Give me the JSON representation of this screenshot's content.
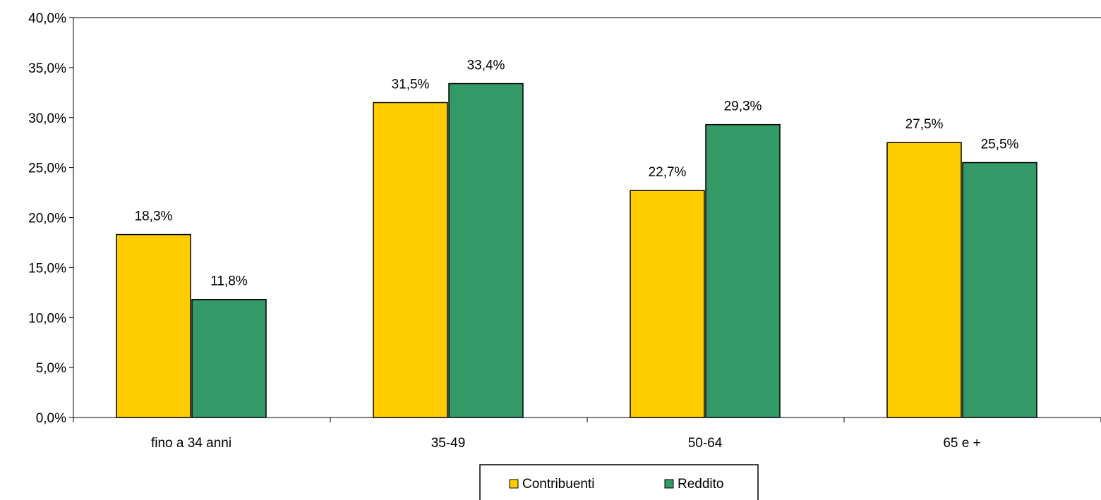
{
  "chart_data": {
    "type": "bar",
    "categories": [
      "fino a 34 anni",
      "35-49",
      "50-64",
      "65 e +"
    ],
    "series": [
      {
        "name": "Contribuenti",
        "color": "#ffcc00",
        "values": [
          18.3,
          31.5,
          22.7,
          27.5
        ],
        "labels": [
          "18,3%",
          "31,5%",
          "22,7%",
          "27,5%"
        ]
      },
      {
        "name": "Reddito",
        "color": "#339966",
        "values": [
          11.8,
          33.4,
          29.3,
          25.5
        ],
        "labels": [
          "11,8%",
          "33,4%",
          "29,3%",
          "25,5%"
        ]
      }
    ],
    "ylim": [
      0,
      40
    ],
    "yticks": [
      0,
      5,
      10,
      15,
      20,
      25,
      30,
      35,
      40
    ],
    "ytick_labels": [
      "0,0%",
      "5,0%",
      "10,0%",
      "15,0%",
      "20,0%",
      "25,0%",
      "30,0%",
      "35,0%",
      "40,0%"
    ],
    "title": "",
    "xlabel": "",
    "ylabel": "",
    "grid": false,
    "legend_position": "bottom"
  }
}
